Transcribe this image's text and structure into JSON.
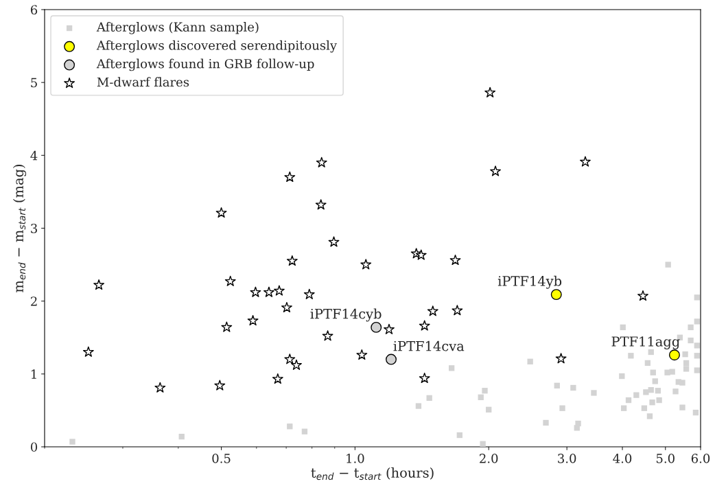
{
  "chart_data": {
    "type": "scatter",
    "xlabel": "t$_{end}$ − t$_{start}$ (hours)",
    "ylabel": "m$_{end}$ − m$_{start}$ (mag)",
    "log": "x",
    "xlim": [
      0.2,
      6.0
    ],
    "ylim": [
      0,
      6
    ],
    "xticks": [
      0.5,
      {
        "value": 1,
        "label": "1.0"
      },
      {
        "value": 2,
        "label": "2.0"
      },
      {
        "value": 3,
        "label": "3.0"
      },
      {
        "value": 4,
        "label": "4.0"
      },
      {
        "value": 5,
        "label": "5.0"
      },
      {
        "value": 6,
        "label": "6.0"
      }
    ],
    "yticks": [
      0,
      1,
      2,
      3,
      4,
      5,
      6
    ],
    "grid": false,
    "legend": "top left",
    "series": [
      {
        "name": "Afterglows (Kann sample)",
        "color": "#d3d3d3",
        "marker": "square",
        "x": [
          0.231,
          0.407,
          0.713,
          0.77,
          1.39,
          1.47,
          1.65,
          1.72,
          1.92,
          1.96,
          2.0,
          1.94,
          2.48,
          2.69,
          2.85,
          2.93,
          3.1,
          3.16,
          3.18,
          3.45,
          5.07,
          5.89,
          5.89,
          5.7,
          4.01,
          5.39,
          5.7,
          5.89,
          4.18,
          4.64,
          5.54,
          5.89,
          4.56,
          5.57,
          5.57,
          5.89,
          4.69,
          5.05,
          5.18,
          3.99,
          4.74,
          5.35,
          5.46,
          4.52,
          4.64,
          4.81,
          5.27,
          4.3,
          4.13,
          4.67,
          4.84,
          4.03,
          4.48,
          5.46,
          5.85,
          4.61
        ],
        "values": [
          0.07,
          0.14,
          0.28,
          0.21,
          0.56,
          0.67,
          1.08,
          0.16,
          0.68,
          0.77,
          0.51,
          0.04,
          1.17,
          0.33,
          0.84,
          0.53,
          0.81,
          0.26,
          0.32,
          0.74,
          2.5,
          2.05,
          1.72,
          1.64,
          1.64,
          1.5,
          1.46,
          1.39,
          1.25,
          1.3,
          1.27,
          1.25,
          1.15,
          1.15,
          1.07,
          1.05,
          1.02,
          1.02,
          1.03,
          0.97,
          0.9,
          0.89,
          0.88,
          0.75,
          0.78,
          0.77,
          0.76,
          0.71,
          0.64,
          0.61,
          0.64,
          0.53,
          0.53,
          0.54,
          0.47,
          0.42
        ]
      },
      {
        "name": "Afterglows discovered serendipitously",
        "color": "#ffff00",
        "marker": "circle",
        "x": [
          2.84,
          5.24
        ],
        "values": [
          2.09,
          1.26
        ]
      },
      {
        "name": "Afterglows found in GRB follow-up",
        "color": "#d3d3d3",
        "marker": "circle",
        "x": [
          1.116,
          1.206
        ],
        "values": [
          1.64,
          1.2
        ]
      },
      {
        "name": "M-dwarf flares",
        "color": "#ffffff",
        "marker": "star",
        "x": [
          0.251,
          0.265,
          0.364,
          0.496,
          0.5,
          0.514,
          0.524,
          0.589,
          0.597,
          0.64,
          0.67,
          0.675,
          0.702,
          0.713,
          0.713,
          0.722,
          0.738,
          0.789,
          0.841,
          0.838,
          0.868,
          0.896,
          1.036,
          1.058,
          1.193,
          1.374,
          1.409,
          1.434,
          1.434,
          1.497,
          1.682,
          1.699,
          2.014,
          2.071,
          2.91,
          3.3,
          4.45
        ],
        "values": [
          1.3,
          2.22,
          0.81,
          0.84,
          3.21,
          1.64,
          2.27,
          1.73,
          2.12,
          2.12,
          0.93,
          2.14,
          1.91,
          3.7,
          1.2,
          2.55,
          1.12,
          2.09,
          3.9,
          3.32,
          1.52,
          2.81,
          1.26,
          2.5,
          1.61,
          2.65,
          2.63,
          1.66,
          0.94,
          1.86,
          2.56,
          1.87,
          4.86,
          3.78,
          1.21,
          3.91,
          2.07
        ]
      }
    ],
    "annotations": [
      {
        "text": "iPTF14cyb",
        "x": 1.116,
        "y": 1.64
      },
      {
        "text": "iPTF14cva",
        "x": 1.206,
        "y": 1.2
      },
      {
        "text": "iPTF14yb",
        "x": 2.84,
        "y": 2.09
      },
      {
        "text": "PTF11agg",
        "x": 5.24,
        "y": 1.26
      }
    ]
  }
}
